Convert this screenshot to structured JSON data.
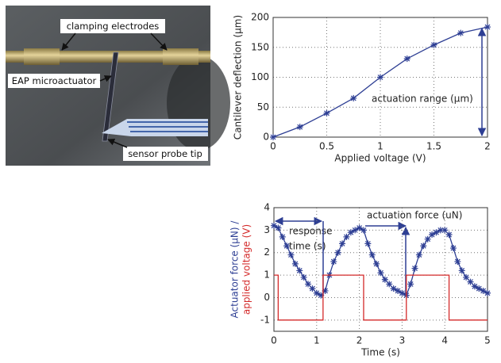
{
  "photo": {
    "labels": [
      "clamping electrodes",
      "EAP microactuator",
      "sensor probe tip"
    ]
  },
  "chart_data": [
    {
      "type": "line",
      "xlabel": "Applied voltage (V)",
      "ylabel": [
        "Cantilever deflection (µm)"
      ],
      "xlim": [
        0,
        2
      ],
      "xticks": [
        0,
        0.5,
        1,
        1.5,
        2
      ],
      "ylim": [
        0,
        200
      ],
      "yticks": [
        0,
        50,
        100,
        150,
        200
      ],
      "grid": true,
      "annotations": [
        "actuation range (µm)"
      ],
      "series": [
        {
          "color": "#2e3f94",
          "marker": "star",
          "x": [
            0,
            0.25,
            0.5,
            0.75,
            1,
            1.25,
            1.5,
            1.75,
            2
          ],
          "values": [
            0,
            17,
            40,
            65,
            100,
            131,
            154,
            174,
            184
          ]
        }
      ]
    },
    {
      "type": "line",
      "xlabel": "Time (s)",
      "ylabel": [
        "Actuator force (μN) /",
        "applied voltage (V)"
      ],
      "xlim": [
        0,
        5
      ],
      "xticks": [
        0,
        1,
        2,
        3,
        4,
        5
      ],
      "ylim": [
        -1.5,
        4
      ],
      "yticks": [
        -1,
        0,
        1,
        2,
        3,
        4
      ],
      "grid": true,
      "annotations": [
        "actuation force (uN)",
        "response",
        "time (s)"
      ],
      "series": [
        {
          "color": "#2e3f94",
          "marker": "star",
          "x": [
            0,
            0.1,
            0.2,
            0.3,
            0.4,
            0.5,
            0.6,
            0.7,
            0.8,
            0.9,
            1,
            1.1,
            1.2,
            1.3,
            1.4,
            1.5,
            1.6,
            1.7,
            1.8,
            1.9,
            2,
            2.1,
            2.2,
            2.3,
            2.4,
            2.5,
            2.6,
            2.7,
            2.8,
            2.9,
            3,
            3.1,
            3.2,
            3.3,
            3.4,
            3.5,
            3.6,
            3.7,
            3.8,
            3.9,
            4,
            4.1,
            4.2,
            4.3,
            4.4,
            4.5,
            4.6,
            4.7,
            4.8,
            4.9,
            5
          ],
          "values": [
            3.2,
            3.1,
            2.7,
            2.3,
            1.9,
            1.5,
            1.2,
            0.9,
            0.6,
            0.4,
            0.2,
            0.1,
            0.3,
            1.0,
            1.6,
            2.0,
            2.4,
            2.7,
            2.9,
            3.0,
            3.1,
            3.0,
            2.4,
            1.9,
            1.5,
            1.1,
            0.8,
            0.6,
            0.4,
            0.3,
            0.2,
            0.1,
            0.6,
            1.3,
            1.9,
            2.3,
            2.6,
            2.8,
            2.9,
            3.0,
            3.0,
            2.8,
            2.2,
            1.6,
            1.2,
            0.9,
            0.7,
            0.5,
            0.4,
            0.3,
            0.2
          ]
        },
        {
          "color": "#d42a2a",
          "x": [
            0,
            0.1,
            0.1,
            1.15,
            1.15,
            2.1,
            2.1,
            3.1,
            3.1,
            4.1,
            4.1,
            5
          ],
          "values": [
            1,
            1,
            -1,
            -1,
            1,
            1,
            -1,
            -1,
            1,
            1,
            -1,
            -1
          ]
        }
      ]
    }
  ]
}
